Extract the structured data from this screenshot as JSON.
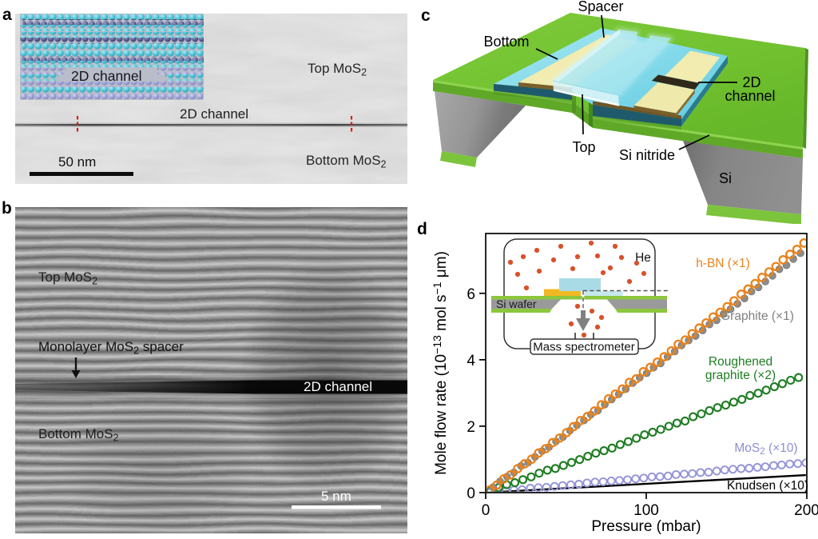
{
  "figure": {
    "background": "#ffffff",
    "panel_letters": {
      "a": "a",
      "b": "b",
      "c": "c",
      "d": "d"
    }
  },
  "panel_a": {
    "letter": "a",
    "inset_channel_label": "2D channel",
    "top_label": {
      "main": "Top MoS",
      "sub": "2"
    },
    "channel_label": "2D channel",
    "bottom_label": {
      "main": "Bottom MoS",
      "sub": "2"
    },
    "scale_bar_label": "50 nm"
  },
  "panel_b": {
    "letter": "b",
    "top_label": {
      "main": "Top MoS",
      "sub": "2"
    },
    "spacer_label": {
      "pre": "Monolayer MoS",
      "sub": "2",
      "post": " spacer"
    },
    "channel_label": "2D channel",
    "bottom_label": {
      "main": "Bottom MoS",
      "sub": "2"
    },
    "scale_bar_label": "5 nm"
  },
  "panel_c": {
    "letter": "c",
    "labels": {
      "spacer": "Spacer",
      "bottom": "Bottom",
      "top": "Top",
      "channel_line1": "2D",
      "channel_line2": "channel",
      "si_nitride": "Si nitride",
      "si": "Si"
    },
    "colors": {
      "membrane": "#74c331",
      "silicon": "#8f8f8f",
      "crystal": "#86dcec",
      "spacer": "#f2ecb0"
    }
  },
  "panel_d": {
    "letter": "d",
    "inset": {
      "gas_label": "He",
      "wafer_label": "Si wafer",
      "detector_label": "Mass spectrometer"
    }
  },
  "chart_data": {
    "type": "scatter",
    "title": "",
    "xlabel": "Pressure (mbar)",
    "ylabel": "Mole flow rate (10⁻¹³ mol s⁻¹ μm)",
    "ylabel_parts": {
      "p1": "Mole flow rate (10",
      "sup1": "−13",
      "p2": " mol s",
      "sup2": "−1",
      "p3": " μm)"
    },
    "xlim": [
      0,
      200
    ],
    "ylim": [
      0,
      7.8
    ],
    "xticks": [
      0,
      100,
      200
    ],
    "yticks": [
      0,
      2,
      4,
      6
    ],
    "grid": false,
    "legend_position": "inline-labels",
    "series": [
      {
        "id": "knudsen",
        "name": "Knudsen (×10)",
        "type": "line",
        "color": "#000000",
        "stroke_width": 2.4,
        "points": [
          [
            0,
            0
          ],
          [
            200,
            0.53
          ]
        ],
        "label_parts": {
          "main": "Knudsen (×10)"
        }
      },
      {
        "id": "mos2",
        "name": "MoS2 (×10)",
        "type": "marker",
        "marker": "circle-open",
        "color": "#9494d8",
        "marker_radius": 4.5,
        "stroke_width": 1.9,
        "points": [
          [
            2.5,
            0.0
          ],
          [
            7.5,
            0.025
          ],
          [
            12.6,
            0.047
          ],
          [
            17.6,
            0.076
          ],
          [
            22.7,
            0.09
          ],
          [
            27.8,
            0.133
          ],
          [
            32.8,
            0.15
          ],
          [
            37.8,
            0.161
          ],
          [
            42.9,
            0.187
          ],
          [
            47.9,
            0.212
          ],
          [
            53.0,
            0.235
          ],
          [
            58.0,
            0.252
          ],
          [
            63.1,
            0.292
          ],
          [
            68.1,
            0.318
          ],
          [
            73.2,
            0.328
          ],
          [
            78.2,
            0.351
          ],
          [
            83.3,
            0.365
          ],
          [
            88.3,
            0.388
          ],
          [
            93.4,
            0.416
          ],
          [
            98.4,
            0.437
          ],
          [
            103.5,
            0.474
          ],
          [
            108.5,
            0.481
          ],
          [
            113.6,
            0.5
          ],
          [
            118.6,
            0.545
          ],
          [
            123.7,
            0.558
          ],
          [
            128.7,
            0.572
          ],
          [
            133.8,
            0.604
          ],
          [
            138.8,
            0.615
          ],
          [
            143.9,
            0.649
          ],
          [
            148.9,
            0.683
          ],
          [
            154.0,
            0.703
          ],
          [
            159.1,
            0.722
          ],
          [
            164.1,
            0.735
          ],
          [
            169.2,
            0.76
          ],
          [
            174.2,
            0.778
          ],
          [
            179.3,
            0.816
          ],
          [
            184.3,
            0.833
          ],
          [
            189.4,
            0.862
          ],
          [
            194.4,
            0.874
          ],
          [
            199.5,
            0.895
          ]
        ],
        "label_parts": {
          "main": "MoS",
          "sub": "2",
          "post": " (×10)"
        }
      },
      {
        "id": "rough_graphite",
        "name": "Roughened graphite (×2)",
        "type": "marker",
        "marker": "circle-open",
        "color": "#1e7d22",
        "marker_radius": 4.5,
        "stroke_width": 2.1,
        "points": [
          [
            3.0,
            0.068
          ],
          [
            8.1,
            0.15
          ],
          [
            13.1,
            0.238
          ],
          [
            18.2,
            0.299
          ],
          [
            23.2,
            0.391
          ],
          [
            28.3,
            0.475
          ],
          [
            33.3,
            0.585
          ],
          [
            38.4,
            0.676
          ],
          [
            43.4,
            0.728
          ],
          [
            48.4,
            0.816
          ],
          [
            53.5,
            0.907
          ],
          [
            58.5,
            0.995
          ],
          [
            63.6,
            1.094
          ],
          [
            68.6,
            1.188
          ],
          [
            73.7,
            1.262
          ],
          [
            78.7,
            1.34
          ],
          [
            83.8,
            1.448
          ],
          [
            88.8,
            1.535
          ],
          [
            93.9,
            1.634
          ],
          [
            98.9,
            1.741
          ],
          [
            104.0,
            1.82
          ],
          [
            109.0,
            1.903
          ],
          [
            114.1,
            1.999
          ],
          [
            119.1,
            2.092
          ],
          [
            124.2,
            2.156
          ],
          [
            129.2,
            2.285
          ],
          [
            134.3,
            2.372
          ],
          [
            139.3,
            2.469
          ],
          [
            144.4,
            2.558
          ],
          [
            149.5,
            2.633
          ],
          [
            154.5,
            2.726
          ],
          [
            159.6,
            2.806
          ],
          [
            164.6,
            2.923
          ],
          [
            169.7,
            2.992
          ],
          [
            174.7,
            3.086
          ],
          [
            179.8,
            3.187
          ],
          [
            184.8,
            3.279
          ],
          [
            189.9,
            3.382
          ],
          [
            194.9,
            3.464
          ]
        ],
        "label_parts": {
          "line1": "Roughened",
          "line2": "graphite (×2)"
        }
      },
      {
        "id": "graphite",
        "name": "Graphite (×1)",
        "type": "marker",
        "marker": "circle-filled",
        "color": "#8c8c8c",
        "edge_color": "#777777",
        "marker_radius": 4.4,
        "points": [
          [
            4.6,
            0.162
          ],
          [
            8.9,
            0.336
          ],
          [
            13.3,
            0.48
          ],
          [
            17.6,
            0.606
          ],
          [
            22.0,
            0.801
          ],
          [
            26.4,
            0.903
          ],
          [
            30.7,
            1.075
          ],
          [
            35.1,
            1.25
          ],
          [
            39.4,
            1.369
          ],
          [
            43.8,
            1.544
          ],
          [
            48.1,
            1.673
          ],
          [
            52.5,
            1.867
          ],
          [
            56.8,
            2.029
          ],
          [
            61.2,
            2.174
          ],
          [
            65.5,
            2.349
          ],
          [
            69.9,
            2.473
          ],
          [
            74.2,
            2.654
          ],
          [
            78.5,
            2.806
          ],
          [
            82.9,
            2.963
          ],
          [
            87.2,
            3.115
          ],
          [
            91.6,
            3.297
          ],
          [
            95.9,
            3.463
          ],
          [
            100.3,
            3.594
          ],
          [
            104.6,
            3.766
          ],
          [
            109.0,
            3.891
          ],
          [
            113.3,
            4.09
          ],
          [
            117.7,
            4.248
          ],
          [
            122.0,
            4.431
          ],
          [
            126.4,
            4.582
          ],
          [
            130.7,
            4.713
          ],
          [
            135.1,
            4.882
          ],
          [
            139.4,
            5.062
          ],
          [
            143.8,
            5.186
          ],
          [
            148.1,
            5.377
          ],
          [
            152.5,
            5.523
          ],
          [
            156.8,
            5.685
          ],
          [
            161.2,
            5.846
          ],
          [
            165.5,
            6.054
          ],
          [
            169.9,
            6.181
          ],
          [
            174.2,
            6.355
          ],
          [
            178.6,
            6.53
          ],
          [
            182.9,
            6.725
          ],
          [
            187.3,
            6.845
          ],
          [
            191.6,
            7.034
          ],
          [
            196.0,
            7.208
          ]
        ],
        "label_parts": {
          "main": "Graphite (×1)"
        }
      },
      {
        "id": "hbn",
        "name": "h-BN (×1)",
        "type": "marker",
        "marker": "circle-open",
        "color": "#e8831c",
        "marker_radius": 4.7,
        "stroke_width": 2.3,
        "points": [
          [
            2.5,
            0.079
          ],
          [
            6.8,
            0.225
          ],
          [
            11.2,
            0.411
          ],
          [
            15.5,
            0.534
          ],
          [
            19.9,
            0.719
          ],
          [
            24.2,
            0.866
          ],
          [
            28.6,
            1.006
          ],
          [
            33.0,
            1.191
          ],
          [
            37.3,
            1.322
          ],
          [
            41.7,
            1.505
          ],
          [
            46.0,
            1.643
          ],
          [
            50.4,
            1.805
          ],
          [
            54.7,
            1.985
          ],
          [
            59.1,
            2.17
          ],
          [
            63.4,
            2.289
          ],
          [
            67.8,
            2.457
          ],
          [
            72.1,
            2.643
          ],
          [
            76.5,
            2.825
          ],
          [
            80.8,
            2.966
          ],
          [
            85.1,
            3.118
          ],
          [
            89.5,
            3.317
          ],
          [
            93.8,
            3.425
          ],
          [
            98.2,
            3.638
          ],
          [
            102.5,
            3.769
          ],
          [
            106.9,
            3.926
          ],
          [
            111.2,
            4.09
          ],
          [
            115.6,
            4.267
          ],
          [
            119.9,
            4.464
          ],
          [
            124.3,
            4.593
          ],
          [
            128.6,
            4.784
          ],
          [
            133.0,
            4.955
          ],
          [
            137.3,
            5.108
          ],
          [
            141.7,
            5.287
          ],
          [
            146.0,
            5.426
          ],
          [
            150.4,
            5.595
          ],
          [
            154.7,
            5.774
          ],
          [
            159.1,
            5.972
          ],
          [
            163.4,
            6.128
          ],
          [
            167.8,
            6.292
          ],
          [
            172.1,
            6.479
          ],
          [
            176.5,
            6.643
          ],
          [
            180.8,
            6.806
          ],
          [
            185.2,
            7.008
          ],
          [
            189.5,
            7.175
          ],
          [
            193.9,
            7.321
          ],
          [
            198.2,
            7.514
          ]
        ],
        "label_parts": {
          "main": "h-BN (×1)"
        }
      }
    ]
  }
}
